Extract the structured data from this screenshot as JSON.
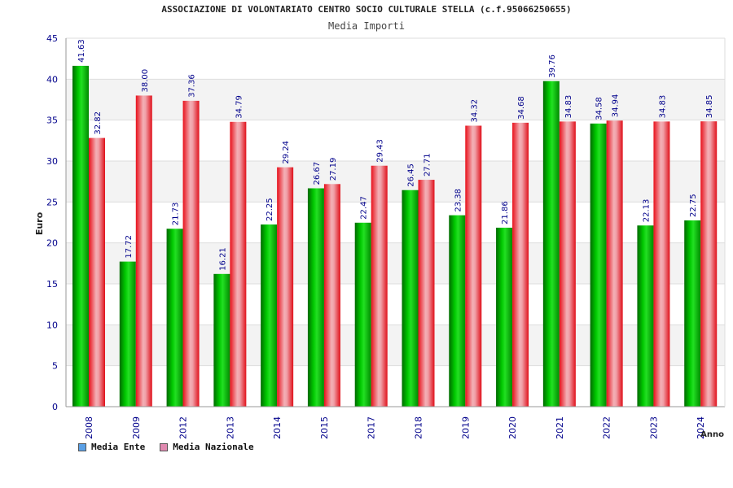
{
  "chart_data": {
    "type": "bar",
    "title": "ASSOCIAZIONE DI VOLONTARIATO CENTRO SOCIO CULTURALE STELLA (c.f.95066250655)",
    "subtitle": "Media Importi",
    "xlabel": "Anno",
    "ylabel": "Euro",
    "ylim": [
      0,
      45
    ],
    "yticks": [
      0,
      5,
      10,
      15,
      20,
      25,
      30,
      35,
      40,
      45
    ],
    "categories": [
      "2008",
      "2009",
      "2012",
      "2013",
      "2014",
      "2015",
      "2017",
      "2018",
      "2019",
      "2020",
      "2021",
      "2022",
      "2023",
      "2024"
    ],
    "series": [
      {
        "name": "Media Ente",
        "legend_color": "#5aa0e6",
        "labels": [
          "41.63",
          "17.72",
          "21.73",
          "16.21",
          "22.25",
          "26.67",
          "22.47",
          "26.45",
          "23.38",
          "21.86",
          "39.76",
          "34.58",
          "22.13",
          "22.75"
        ],
        "values": [
          41.63,
          17.72,
          21.73,
          16.21,
          22.25,
          26.67,
          22.47,
          26.45,
          23.38,
          21.86,
          39.76,
          34.58,
          22.13,
          22.75
        ]
      },
      {
        "name": "Media Nazionale",
        "legend_color": "#e08ab0",
        "labels": [
          "32.82",
          "38.00",
          "37.36",
          "34.79",
          "29.24",
          "27.19",
          "29.43",
          "27.71",
          "34.32",
          "34.68",
          "34.83",
          "34.94",
          "34.83",
          "34.85"
        ],
        "values": [
          32.82,
          38.0,
          37.36,
          34.79,
          29.24,
          27.19,
          29.43,
          27.71,
          34.32,
          34.68,
          34.83,
          34.94,
          34.83,
          34.85
        ]
      }
    ],
    "grid": true,
    "legend_position": "bottom-left"
  }
}
